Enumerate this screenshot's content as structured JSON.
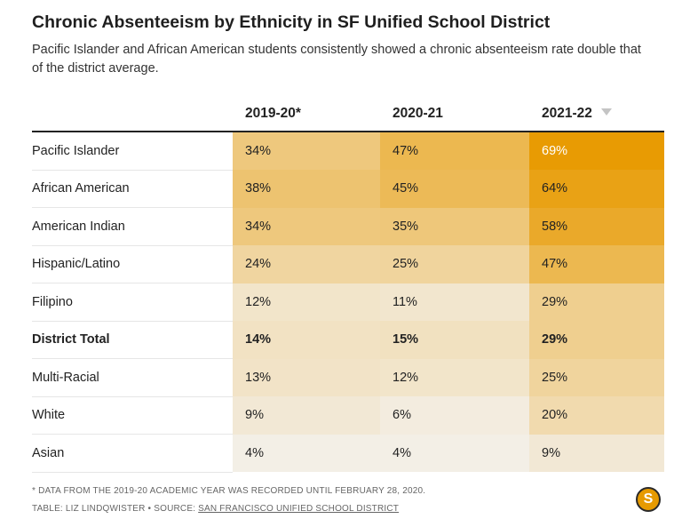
{
  "title": "Chronic Absenteeism by Ethnicity in SF Unified School District",
  "subtitle": "Pacific Islander and African American students consistently showed a chronic absenteeism rate double that of the district average.",
  "footnote": "* DATA FROM THE 2019-20 ACADEMIC YEAR WAS RECORDED UNTIL FEBRUARY 28, 2020.",
  "credit_prefix": "TABLE: LIZ LINDQWISTER • SOURCE: ",
  "credit_link": "SAN FRANCISCO UNIFIED SCHOOL DISTRICT",
  "logo_letter": "S",
  "colors": {
    "low": "#f4f4f4",
    "high": "#e89a00",
    "logo": "#e69a00"
  },
  "chart_data": {
    "type": "heatmap",
    "title": "Chronic Absenteeism by Ethnicity in SF Unified School District",
    "columns": [
      "2019-20*",
      "2020-21",
      "2021-22"
    ],
    "sorted_column": "2021-22",
    "sort_direction": "descending",
    "rows": [
      {
        "label": "Pacific Islander",
        "values": [
          34,
          47,
          69
        ],
        "bold": false
      },
      {
        "label": "African American",
        "values": [
          38,
          45,
          64
        ],
        "bold": false
      },
      {
        "label": "American Indian",
        "values": [
          34,
          35,
          58
        ],
        "bold": false
      },
      {
        "label": "Hispanic/Latino",
        "values": [
          24,
          25,
          47
        ],
        "bold": false
      },
      {
        "label": "Filipino",
        "values": [
          12,
          11,
          29
        ],
        "bold": false
      },
      {
        "label": "District Total",
        "values": [
          14,
          15,
          29
        ],
        "bold": true
      },
      {
        "label": "Multi-Racial",
        "values": [
          13,
          12,
          25
        ],
        "bold": false
      },
      {
        "label": "White",
        "values": [
          9,
          6,
          20
        ],
        "bold": false
      },
      {
        "label": "Asian",
        "values": [
          4,
          4,
          9
        ],
        "bold": false
      }
    ],
    "unit": "%",
    "color_scale": [
      0,
      70
    ]
  }
}
